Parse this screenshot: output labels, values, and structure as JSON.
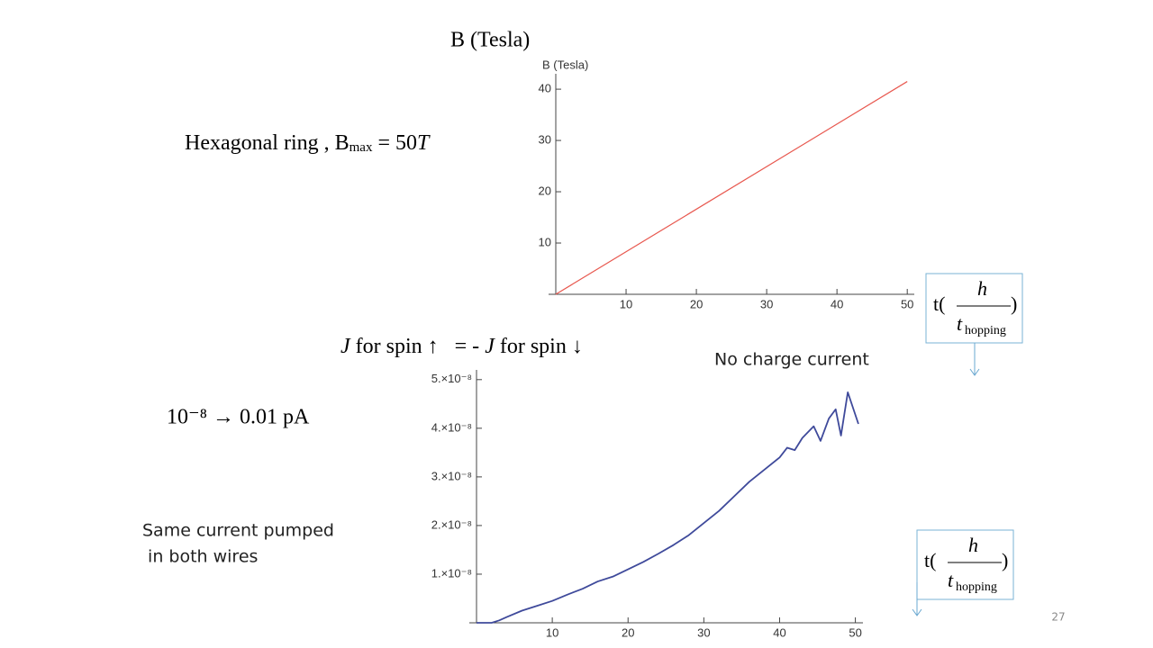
{
  "slide": {
    "b_title": "B (Tesla)",
    "hex_main": "Hexagonal  ring , B",
    "hex_sub": "max",
    "hex_eq": " = 50",
    "hex_T": "T",
    "spin_J1": "J",
    "spin_mid": " for spin ↑   = - ",
    "spin_J2": "J",
    "spin_end": " for spin ↓",
    "conversion": "10⁻⁸ → 0.01 pA",
    "no_charge": "No charge current",
    "same_current_1": "Same current pumped",
    "same_current_2": " in both wires",
    "box_t": "t(",
    "box_h": "h",
    "box_den_t": "t",
    "box_den_sub": "hopping",
    "box_close": ")",
    "page_number": "27"
  },
  "chart_data": [
    {
      "type": "line",
      "ylabel": "B (Tesla)",
      "color": "#e8584f",
      "x": [
        0,
        50
      ],
      "values": [
        0,
        41.5
      ],
      "xlim": [
        0,
        51
      ],
      "ylim": [
        0,
        43
      ],
      "xticks": [
        10,
        20,
        30,
        40,
        50
      ],
      "yticks": [
        10,
        20,
        30,
        40
      ]
    },
    {
      "type": "line",
      "color": "#3f4a9b",
      "x": [
        0,
        2,
        3,
        4,
        6,
        8,
        10,
        12,
        14,
        16,
        18,
        20,
        22,
        24,
        26,
        28,
        30,
        32,
        34,
        36,
        38,
        40,
        41,
        42,
        43,
        44.5,
        45.4,
        46.5,
        47.4,
        48.1,
        49,
        50.4
      ],
      "values": [
        0,
        0,
        5e-10,
        1.2e-09,
        2.5e-09,
        3.5e-09,
        4.5e-09,
        5.8e-09,
        7e-09,
        8.5e-09,
        9.5e-09,
        1.1e-08,
        1.25e-08,
        1.42e-08,
        1.6e-08,
        1.8e-08,
        2.05e-08,
        2.3e-08,
        2.6e-08,
        2.9e-08,
        3.15e-08,
        3.4e-08,
        3.6e-08,
        3.55e-08,
        3.8e-08,
        4.04e-08,
        3.74e-08,
        4.2e-08,
        4.39e-08,
        3.85e-08,
        4.74e-08,
        4.09e-08
      ],
      "xlim": [
        0,
        51
      ],
      "ylim": [
        0,
        5.2e-08
      ],
      "xticks": [
        10,
        20,
        30,
        40,
        50
      ],
      "yticks": [
        {
          "value": 1e-08,
          "label": "1.×10⁻⁸"
        },
        {
          "value": 2e-08,
          "label": "2.×10⁻⁸"
        },
        {
          "value": 3e-08,
          "label": "3.×10⁻⁸"
        },
        {
          "value": 4e-08,
          "label": "4.×10⁻⁸"
        },
        {
          "value": 5e-08,
          "label": "5.×10⁻⁸"
        }
      ]
    }
  ]
}
